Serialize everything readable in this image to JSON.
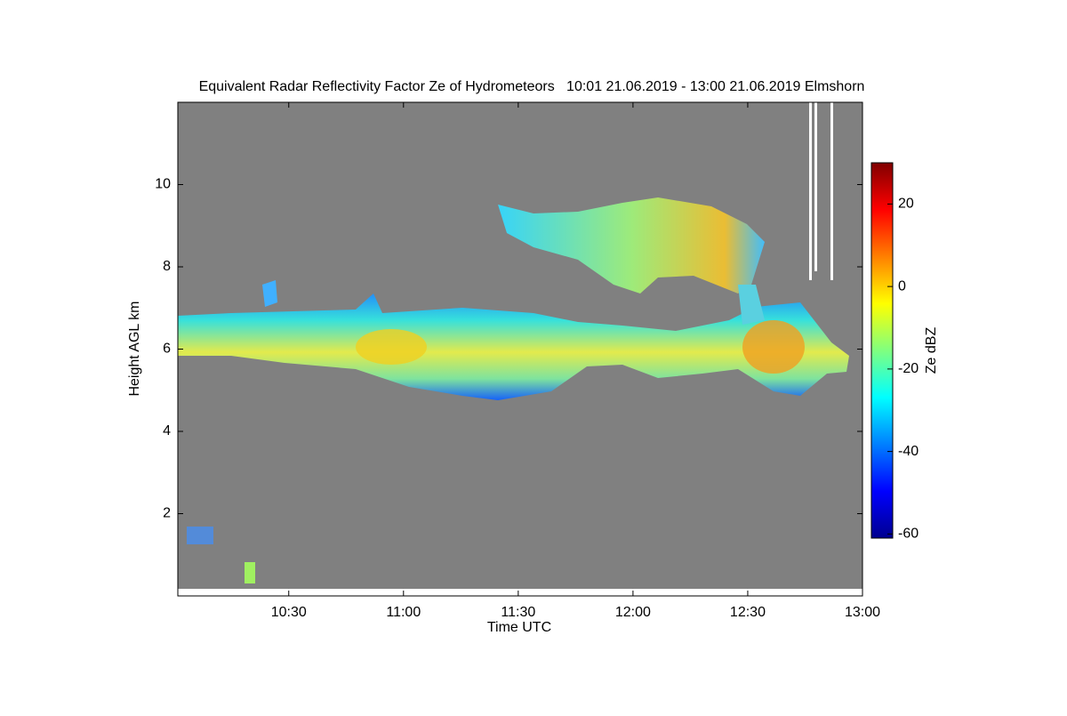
{
  "chart_data": {
    "type": "heatmap",
    "title": "Equivalent Radar Reflectivity Factor Ze of Hydrometeors   10:01 21.06.2019 - 13:00 21.06.2019 Elmshorn",
    "x_label": "Time UTC",
    "y_label": "Height AGL km",
    "xlim": [
      10.0167,
      13.0
    ],
    "xticks": [
      {
        "value": 10.5,
        "label": "10:30"
      },
      {
        "value": 11,
        "label": "11:00"
      },
      {
        "value": 11.5,
        "label": "11:30"
      },
      {
        "value": 12,
        "label": "12:00"
      },
      {
        "value": 12.5,
        "label": "12:30"
      },
      {
        "value": 13,
        "label": "13:00"
      }
    ],
    "ylim": [
      0,
      12
    ],
    "yticks": [
      2,
      4,
      6,
      8,
      10
    ],
    "background": "#808080",
    "colorbar": {
      "label": "Ze dBZ",
      "lim": [
        -61,
        30
      ],
      "ticks": [
        -60,
        -40,
        -20,
        0,
        20
      ],
      "colormap": "jet"
    }
  }
}
